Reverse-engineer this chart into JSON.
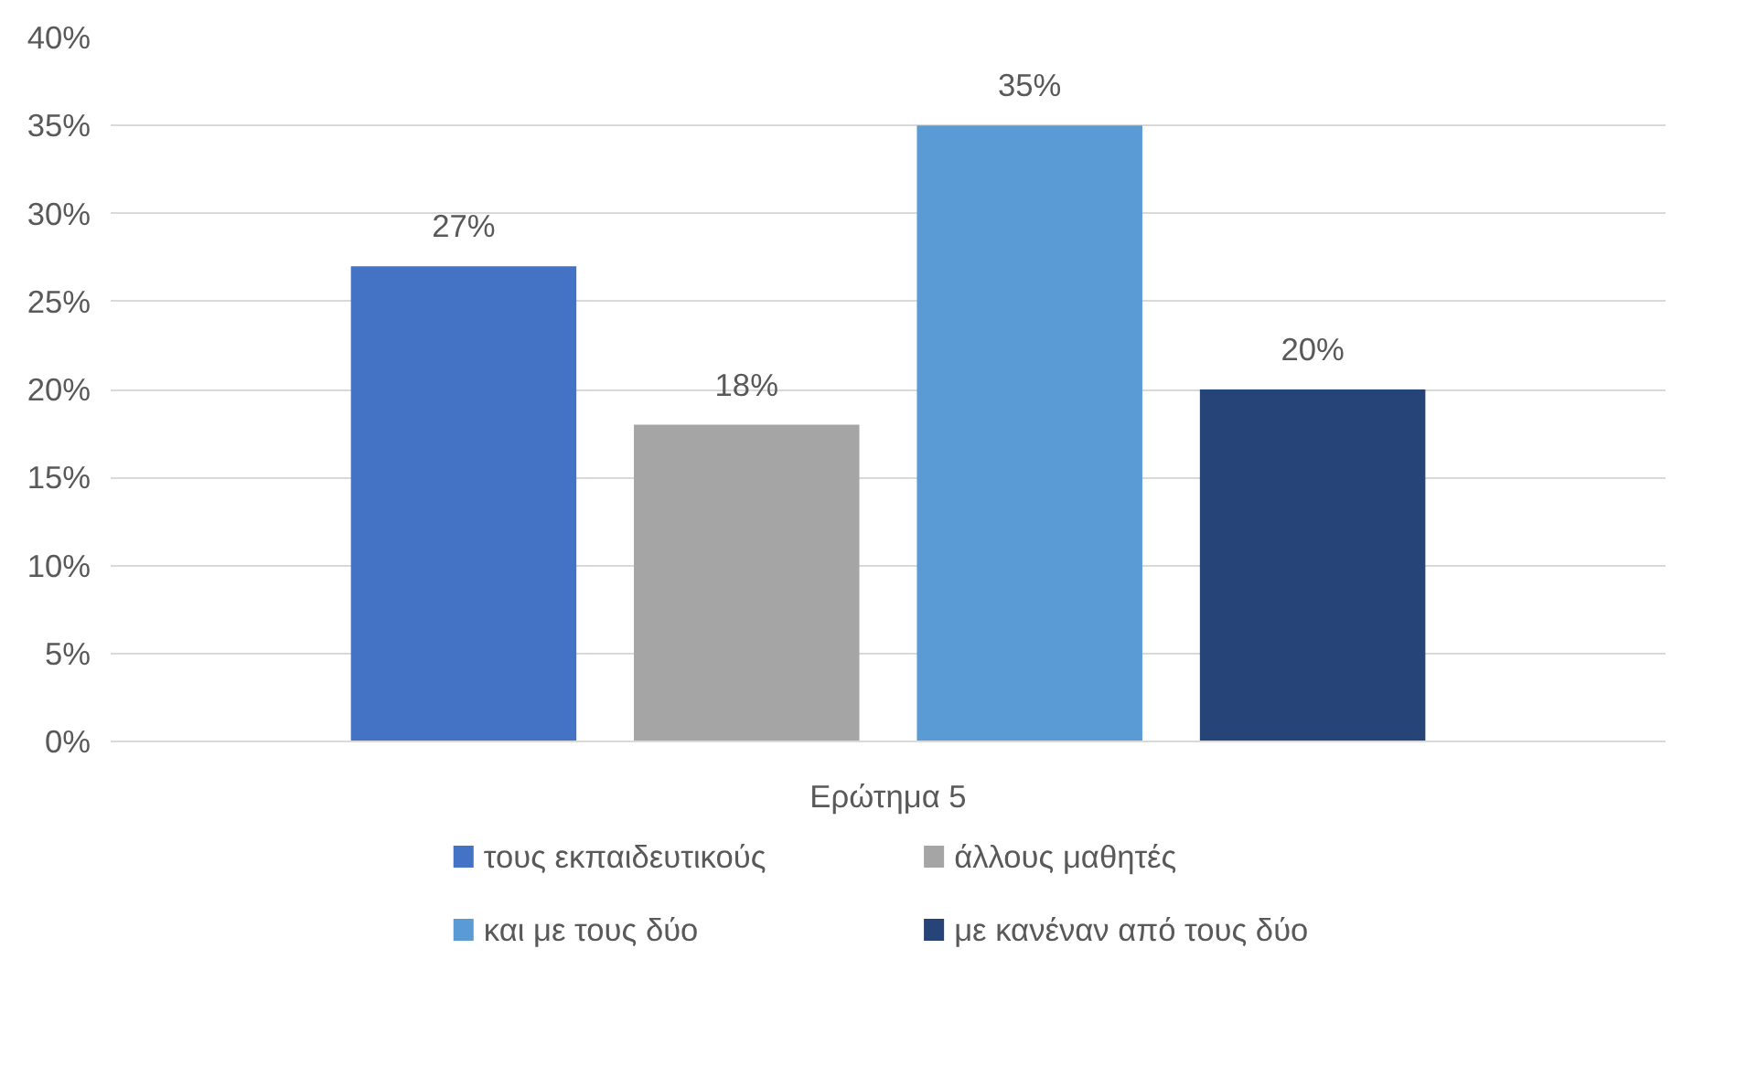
{
  "chart_data": {
    "type": "bar",
    "categories": [
      "Ερώτημα 5"
    ],
    "series": [
      {
        "name": "τους εκπαιδευτικούς",
        "color": "#4472c4",
        "values": [
          27
        ],
        "value_labels": [
          "27%"
        ]
      },
      {
        "name": "άλλους μαθητές",
        "color": "#a5a5a5",
        "values": [
          18
        ],
        "value_labels": [
          "18%"
        ]
      },
      {
        "name": "και με τους δύο",
        "color": "#5b9bd5",
        "values": [
          35
        ],
        "value_labels": [
          "35%"
        ]
      },
      {
        "name": "με κανέναν από τους δύο",
        "color": "#264478",
        "values": [
          20
        ],
        "value_labels": [
          "20%"
        ]
      }
    ],
    "ylim": [
      0,
      40
    ],
    "yticks": [
      {
        "value": 0,
        "label": "0%"
      },
      {
        "value": 5,
        "label": "5%"
      },
      {
        "value": 10,
        "label": "10%"
      },
      {
        "value": 15,
        "label": "15%"
      },
      {
        "value": 20,
        "label": "20%"
      },
      {
        "value": 25,
        "label": "25%"
      },
      {
        "value": 30,
        "label": "30%"
      },
      {
        "value": 35,
        "label": "35%"
      },
      {
        "value": 40,
        "label": "40%"
      }
    ],
    "grid": "y",
    "legend": "bottom"
  }
}
